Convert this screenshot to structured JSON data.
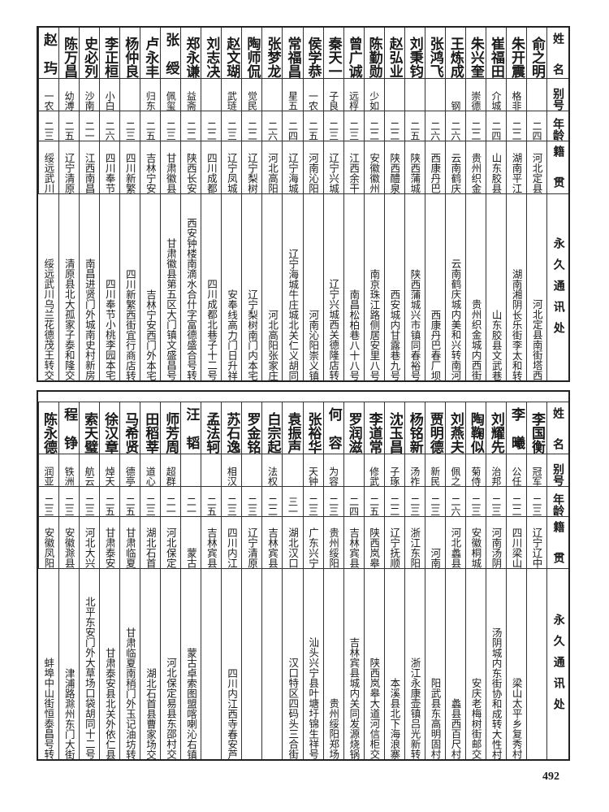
{
  "header": {
    "name": "姓名",
    "alias": "别号",
    "age": "年龄",
    "origin": "籍贯",
    "address": "永久通讯处"
  },
  "tables": [
    {
      "rows": [
        {
          "name": "俞之明",
          "alias": "",
          "age": "二四",
          "origin": "河北定县",
          "address": "河北定县南街塔西"
        },
        {
          "name": "朱开震",
          "alias": "格非",
          "age": "二二",
          "origin": "湖南平江",
          "address": "湖南湘阴长乐街李太和转"
        },
        {
          "name": "崔福田",
          "alias": "介城",
          "age": "二四",
          "origin": "山东胶县",
          "address": "山东胶县文武巷"
        },
        {
          "name": "朱兴奎",
          "alias": "崇德",
          "age": "二二",
          "origin": "贵州织金",
          "address": "贵州织金城内西街"
        },
        {
          "name": "王炼成",
          "alias": "钢",
          "age": "二六",
          "origin": "云南鹤庆",
          "address": "云南鹤庆城内美和兴转南河"
        },
        {
          "name": "张鸿飞",
          "alias": "",
          "age": "二六",
          "origin": "西康丹巴",
          "address": "西康丹巴春厂坝"
        },
        {
          "name": "刘秉钧",
          "alias": "",
          "age": "二五",
          "origin": "陕西蒲城",
          "address": "陕西蒲城兴市镇同春裕号"
        },
        {
          "name": "赵弘业",
          "alias": "",
          "age": "二二",
          "origin": "陕西醴泉",
          "address": "西安城内甘露巷九号"
        },
        {
          "name": "陈勤勋",
          "alias": "少如",
          "age": "二二",
          "origin": "安徽徽州",
          "address": "南京珠江路侧居安里八号"
        },
        {
          "name": "曾广诚",
          "alias": "远桴",
          "age": "二三",
          "origin": "江西余干",
          "address": "南昌松柏巷八十八号"
        },
        {
          "name": "秦天一",
          "alias": "子良",
          "age": "二三",
          "origin": "辽宁兴城",
          "address": "辽宁兴城西关德隆店转"
        },
        {
          "name": "侯学恭",
          "alias": "一农",
          "age": "二五",
          "origin": "河南沁阳",
          "address": "河南沁阳崇义镇"
        },
        {
          "name": "常福昌",
          "alias": "星五",
          "age": "二四",
          "origin": "辽宁海城",
          "address": "辽宁海城牛庄城北关仁义胡同"
        },
        {
          "name": "张梦龙",
          "alias": "",
          "age": "二六",
          "origin": "河北高阳",
          "address": "河北高阳张家庄"
        },
        {
          "name": "陶师侃",
          "alias": "觉民",
          "age": "二二",
          "origin": "辽宁梨树",
          "address": "辽宁梨树南门内本宅"
        },
        {
          "name": "赵文瑚",
          "alias": "武琏",
          "age": "二三",
          "origin": "辽宁凤城",
          "address": "安奉线高力门日升祥"
        },
        {
          "name": "刘志决",
          "alias": "",
          "age": "二二",
          "origin": "四川成都",
          "address": "四川成都北巷子十二号"
        },
        {
          "name": "郑永谦",
          "alias": "益斋",
          "age": "二二",
          "origin": "陕西长安",
          "address": "西安钟楼南滴水合什字富德盛合号转"
        },
        {
          "name": "张绶",
          "alias": "佩玺",
          "age": "二三",
          "origin": "甘肃徽县",
          "address": "甘肃徽县第五区大门镇文盛昌号"
        },
        {
          "name": "卢永丰",
          "alias": "归东",
          "age": "二五",
          "origin": "吉林宁安",
          "address": "吉林宁安西门外本宅"
        },
        {
          "name": "杨仲良",
          "alias": "",
          "age": "二三",
          "origin": "四川新繁",
          "address": "四川新繁西街宜行商店转"
        },
        {
          "name": "李正桓",
          "alias": "小白",
          "age": "二六",
          "origin": "四川奉节",
          "address": "四川奉节小桃李园本宅"
        },
        {
          "name": "史必列",
          "alias": "沙南",
          "age": "二一",
          "origin": "江西南昌",
          "address": "南昌进贤门外城南史村新房"
        },
        {
          "name": "陈万昌",
          "alias": "幼溥",
          "age": "二五",
          "origin": "辽宁清原",
          "address": "清原县北大孤家子泰和隆交"
        },
        {
          "name": "赵玙",
          "alias": "一农",
          "age": "二三",
          "origin": "绥远武川",
          "address": "绥远武川乌兰花德茂王转交"
        }
      ]
    },
    {
      "rows": [
        {
          "name": "李国衡",
          "alias": "冠军",
          "age": "二三",
          "origin": "辽宁辽中",
          "address": ""
        },
        {
          "name": "李曦",
          "alias": "公任",
          "age": "二二",
          "origin": "四川梁山",
          "address": "梁山太平乡复秀村"
        },
        {
          "name": "刘耀先",
          "alias": "治邦",
          "age": "二三",
          "origin": "河南汤阴",
          "address": "汤阴城内东街协和成转大性村"
        },
        {
          "name": "陶鞠似",
          "alias": "菊侍",
          "age": "二三",
          "origin": "安徽桐城",
          "address": "安庆老梅树街邮交"
        },
        {
          "name": "刘燕夫",
          "alias": "佩之",
          "age": "二六",
          "origin": "河北蠡县",
          "address": "蠡县西百尺村"
        },
        {
          "name": "贾明德",
          "alias": "新民",
          "age": "二三",
          "origin": "河南",
          "address": "阳武县东高明固村"
        },
        {
          "name": "杨铭新",
          "alias": "汤祚",
          "age": "二三",
          "origin": "浙江东阳",
          "address": "浙江永康壶镇吕光新转"
        },
        {
          "name": "沈玉昌",
          "alias": "子琢",
          "age": "二二",
          "origin": "辽宁抚顺",
          "address": "本溪县北下海浪寨"
        },
        {
          "name": "李道常",
          "alias": "修武",
          "age": "二五",
          "origin": "陕西岚皋",
          "address": "陕西岚皋大道河信柜交"
        },
        {
          "name": "罗润滋",
          "alias": "",
          "age": "二四",
          "origin": "吉林宾县",
          "address": "吉林宾县城内关同发源烧锅"
        },
        {
          "name": "何容",
          "alias": "为容",
          "age": "二三",
          "origin": "贵州绥阳",
          "address": "贵州绥阳郑场"
        },
        {
          "name": "张裕华",
          "alias": "天钟",
          "age": "二三",
          "origin": "广东兴宁",
          "address": "汕头兴宁县叶塘圩锦生祥号"
        },
        {
          "name": "袁振声",
          "alias": "",
          "age": "三一",
          "origin": "湖北汉口",
          "address": "汉口特区四码头三合街"
        },
        {
          "name": "白宗起",
          "alias": "法权",
          "age": "二二",
          "origin": "吉林宾县",
          "address": ""
        },
        {
          "name": "罗金铭",
          "alias": "",
          "age": "二三",
          "origin": "辽宁清原",
          "address": ""
        },
        {
          "name": "苏石逸",
          "alias": "相汉",
          "age": "二三",
          "origin": "四川内江",
          "address": "四川内江西寺春安芦"
        },
        {
          "name": "孟法轲",
          "alias": "",
          "age": "二五",
          "origin": "吉林宾县",
          "address": ""
        },
        {
          "name": "汪韬",
          "alias": "",
          "age": "二一",
          "origin": "蒙古",
          "address": "蒙古卓索图盟喀喇沁右镇"
        },
        {
          "name": "师芳周",
          "alias": "超群",
          "age": "二一",
          "origin": "河北保定",
          "address": "河北保定易县东邵村交"
        },
        {
          "name": "田稻莘",
          "alias": "道心",
          "age": "二三",
          "origin": "湖北石首",
          "address": "湖北石首县曹家场交"
        },
        {
          "name": "马希贤",
          "alias": "德亭",
          "age": "二五",
          "origin": "甘肃临夏",
          "address": "甘肃临夏南稍门外玉记油坊转"
        },
        {
          "name": "徐汉章",
          "alias": "焯天",
          "age": "二五",
          "origin": "甘肃泰安",
          "address": "甘肃泰安县北关外依仁县"
        },
        {
          "name": "索天璧",
          "alias": "航云",
          "age": "二三",
          "origin": "河北大兴",
          "address": "北平东安门外大草场口袋胡同十二号"
        },
        {
          "name": "程铮",
          "alias": "铁洲",
          "age": "二三",
          "origin": "安徽滁县",
          "address": "津浦路滁州东门大街"
        },
        {
          "name": "陈永德",
          "alias": "润亚",
          "age": "二三",
          "origin": "安徽凤阳",
          "address": "蚌埠中山街恒泰昌号转"
        }
      ]
    }
  ],
  "page_number": "492"
}
